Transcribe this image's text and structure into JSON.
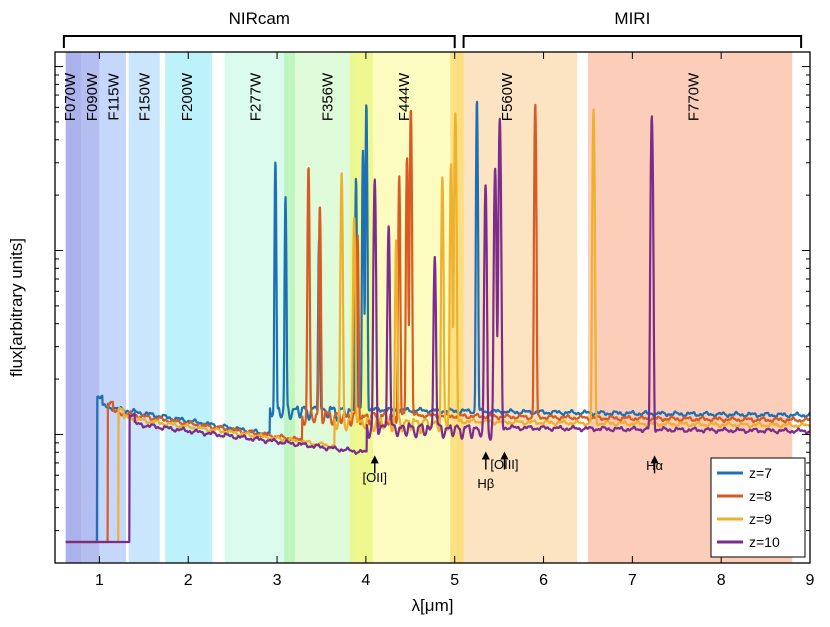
{
  "chart_data": {
    "type": "line",
    "title": "",
    "xlabel": "λ[μm]",
    "ylabel": "flux[arbitrary units]",
    "xlim": [
      0.5,
      9.0
    ],
    "ylim": [
      0.02,
      12
    ],
    "yscale": "log",
    "x_ticks": [
      1,
      2,
      3,
      4,
      5,
      6,
      7,
      8,
      9
    ],
    "x_tick_labels": [
      "1",
      "2",
      "3",
      "4",
      "5",
      "6",
      "7",
      "8",
      "9"
    ],
    "y_tick_values": [
      0.1,
      1,
      10
    ],
    "y_tick_labels": [
      "",
      "",
      ""
    ],
    "instruments": [
      {
        "name": "NIRcam",
        "x_range": [
          0.6,
          5.0
        ]
      },
      {
        "name": "MIRI",
        "x_range": [
          5.1,
          8.9
        ]
      }
    ],
    "filters": [
      {
        "name": "F070W",
        "range": [
          0.62,
          0.8
        ],
        "color": "#9da4e8",
        "label_x": 0.68
      },
      {
        "name": "F090W",
        "range": [
          0.8,
          1.0
        ],
        "color": "#a7b3ef",
        "label_x": 0.93
      },
      {
        "name": "F115W",
        "range": [
          1.0,
          1.3
        ],
        "color": "#bcd0fb",
        "label_x": 1.17
      },
      {
        "name": "F150W",
        "range": [
          1.33,
          1.68
        ],
        "color": "#bfe2fb",
        "label_x": 1.52
      },
      {
        "name": "F200W",
        "range": [
          1.74,
          2.27
        ],
        "color": "#b3f0f9",
        "label_x": 2.0
      },
      {
        "name": "F277W",
        "range": [
          2.41,
          3.13
        ],
        "color": "#d4faea",
        "label_x": 2.77
      },
      {
        "name": "F356W",
        "range": [
          3.15,
          3.97
        ],
        "color": "#d9fad2",
        "label_x": 3.58
      },
      {
        "name": "F444W",
        "range": [
          3.88,
          4.98
        ],
        "color": "#fbfbb6",
        "label_x": 4.44
      },
      {
        "name": "F560W",
        "range": [
          5.02,
          6.38
        ],
        "color": "#fcdfb8",
        "label_x": 5.6
      },
      {
        "name": "F770W",
        "range": [
          6.5,
          8.8
        ],
        "color": "#fbc5ad",
        "label_x": 7.7
      }
    ],
    "series": [
      {
        "name": "z=7",
        "color": "#1f6fb4",
        "z": 7
      },
      {
        "name": "z=8",
        "color": "#d85a24",
        "z": 8
      },
      {
        "name": "z=9",
        "color": "#eeb02e",
        "z": 9
      },
      {
        "name": "z=10",
        "color": "#7b2c8c",
        "z": 10
      }
    ],
    "annotations": [
      {
        "text": "[OII]",
        "x": 4.1,
        "y": 0.062,
        "arrow_to_y": 0.083
      },
      {
        "text": "Hβ",
        "x": 5.35,
        "y": 0.05,
        "arrow_to_y": 0.087
      },
      {
        "text": "[OIII]",
        "x": 5.56,
        "y": 0.058,
        "arrow_to_y": 0.087
      },
      {
        "text": "Hα",
        "x": 7.25,
        "y": 0.058,
        "arrow_to_y": 0.083
      }
    ],
    "legend_position": "bottom-right",
    "grid": false
  }
}
